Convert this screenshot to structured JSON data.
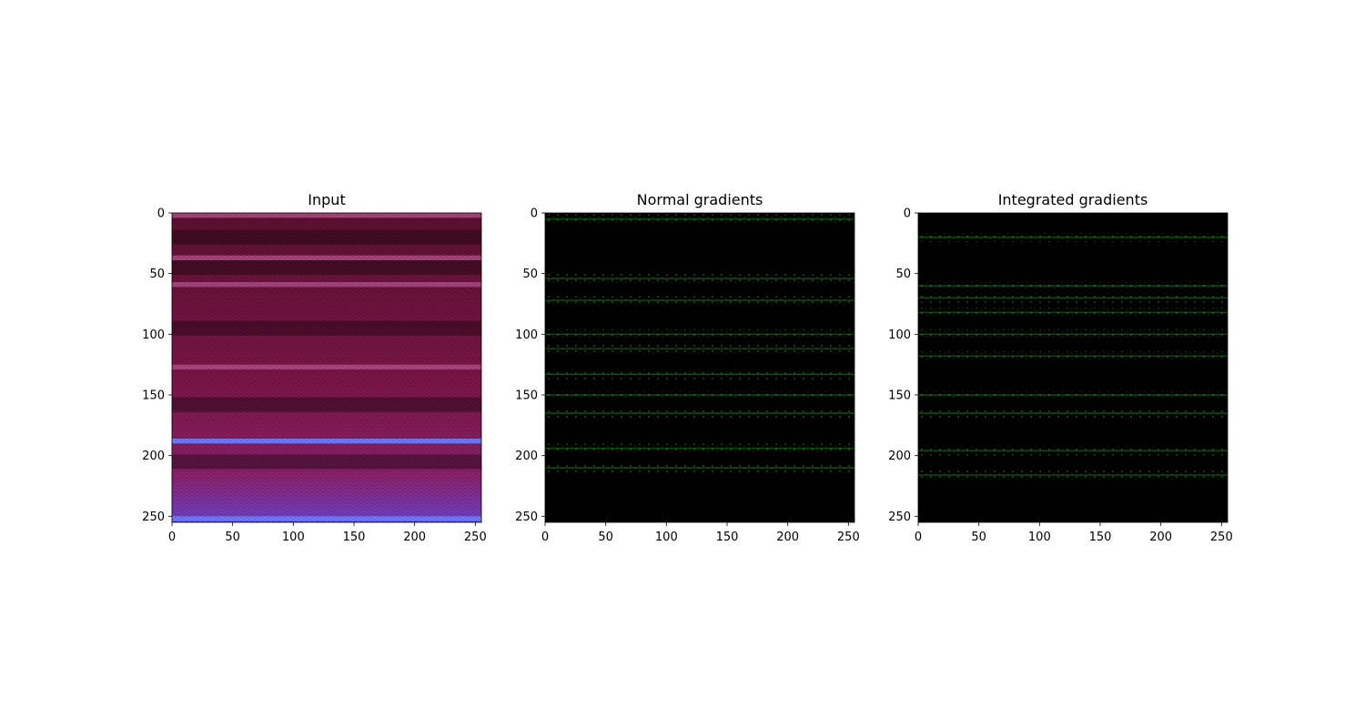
{
  "chart_data": [
    {
      "type": "heatmap",
      "title": "Input",
      "xlabel": "",
      "ylabel": "",
      "xlim": [
        0,
        255
      ],
      "ylim": [
        255,
        0
      ],
      "xticks": [
        0,
        50,
        100,
        150,
        200,
        250
      ],
      "yticks": [
        0,
        50,
        100,
        150,
        200,
        250
      ],
      "colors": {
        "background": "#6b1038",
        "stripe": "#b04a86",
        "band": "#6a7cff",
        "edge": "#4a4cf0"
      },
      "bright_rows": [
        2,
        37,
        59,
        127,
        188,
        252
      ],
      "dark_rows": [
        20,
        45,
        95,
        158,
        205
      ]
    },
    {
      "type": "heatmap",
      "title": "Normal gradients",
      "xlabel": "",
      "ylabel": "",
      "xlim": [
        0,
        255
      ],
      "ylim": [
        255,
        0
      ],
      "xticks": [
        0,
        50,
        100,
        150,
        200,
        250
      ],
      "yticks": [
        0,
        50,
        100,
        150,
        200,
        250
      ],
      "colors": {
        "background": "#000000",
        "signal": "#22d022"
      },
      "bright_rows": [
        5,
        54,
        72,
        100,
        112,
        133,
        150,
        165,
        194,
        210
      ]
    },
    {
      "type": "heatmap",
      "title": "Integrated gradients",
      "xlabel": "",
      "ylabel": "",
      "xlim": [
        0,
        255
      ],
      "ylim": [
        255,
        0
      ],
      "xticks": [
        0,
        50,
        100,
        150,
        200,
        250
      ],
      "yticks": [
        0,
        50,
        100,
        150,
        200,
        250
      ],
      "colors": {
        "background": "#000000",
        "signal": "#22d022"
      },
      "bright_rows": [
        20,
        60,
        70,
        82,
        100,
        118,
        150,
        165,
        196,
        216
      ]
    }
  ]
}
